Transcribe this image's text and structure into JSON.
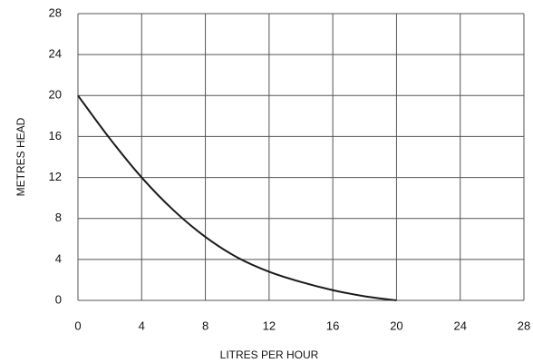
{
  "chart_data": {
    "type": "line",
    "x_label": "LITRES PER HOUR",
    "y_label": "METRES HEAD",
    "x": [
      0,
      2,
      4,
      6,
      8,
      10,
      12,
      14,
      16,
      18,
      20
    ],
    "series": [
      {
        "color": "#1a1a1a",
        "values": [
          20,
          15.8,
          12,
          8.8,
          6.2,
          4.2,
          2.8,
          1.8,
          1,
          0.4,
          0
        ]
      }
    ],
    "xlim": [
      0,
      28
    ],
    "xticks": [
      0,
      4,
      8,
      12,
      16,
      20,
      24,
      28
    ],
    "ylim": [
      0,
      28
    ],
    "yticks": [
      0,
      4,
      8,
      12,
      16,
      20,
      24,
      28
    ],
    "grid": true
  }
}
